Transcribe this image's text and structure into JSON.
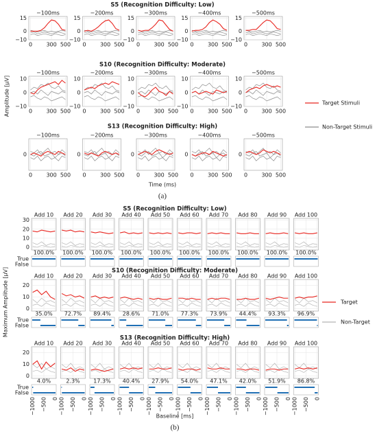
{
  "chart_data": [
    {
      "type": "line",
      "caption": "(a)",
      "ylabel": "Amplitude [μV]",
      "xlabel": "Time (ms)",
      "legend": [
        {
          "name": "Target Stimuli",
          "color": "#e8251f"
        },
        {
          "name": "Non-Target Stimuli",
          "color": "#8c8c8c"
        }
      ],
      "x": [
        0,
        50,
        100,
        150,
        200,
        250,
        300,
        350,
        400,
        450,
        500
      ],
      "xlim": [
        -25,
        525
      ],
      "xticks": [
        0,
        300,
        500
      ],
      "rows": [
        {
          "title": "S5 (Recognition Difficulty: Low)",
          "ylim": [
            -10,
            17
          ],
          "yticks": [
            {
              "value": -10,
              "label": "−10"
            },
            0,
            15
          ],
          "nontarget": [
            [
              -2,
              -1,
              -3,
              -2,
              -1,
              -2,
              -3,
              -2,
              -1,
              -2,
              -3
            ],
            [
              1,
              0,
              -1,
              0,
              1,
              -1,
              0,
              -1,
              0,
              1,
              0
            ],
            [
              -4,
              -3,
              -5,
              -4,
              -3,
              -4,
              -5,
              -3,
              -4,
              -5,
              -4
            ]
          ],
          "panels": [
            {
              "title": "−100ms",
              "target": [
                0,
                0,
                0,
                1,
                4,
                9,
                13,
                12,
                8,
                2,
                1
              ]
            },
            {
              "title": "−200ms",
              "target": [
                0,
                1,
                0,
                2,
                5,
                9,
                12,
                13,
                9,
                3,
                1
              ]
            },
            {
              "title": "−300ms",
              "target": [
                1,
                0,
                1,
                1,
                4,
                8,
                13,
                12,
                7,
                2,
                0
              ]
            },
            {
              "title": "−400ms",
              "target": [
                0,
                1,
                1,
                2,
                5,
                10,
                13,
                11,
                8,
                3,
                1
              ]
            },
            {
              "title": "−500ms",
              "target": [
                1,
                1,
                2,
                2,
                6,
                10,
                13,
                12,
                8,
                3,
                2
              ]
            }
          ]
        },
        {
          "title": "S10 (Recognition Difficulty: Moderate)",
          "ylim": [
            -10,
            12
          ],
          "yticks": [
            {
              "value": -10,
              "label": "−10"
            },
            0,
            10
          ],
          "nontarget": [
            [
              2,
              4,
              3,
              6,
              5,
              7,
              4,
              3,
              5,
              2,
              1
            ],
            [
              -3,
              -2,
              -4,
              -5,
              -3,
              -4,
              -6,
              -5,
              -4,
              -3,
              -5
            ],
            [
              0,
              1,
              -1,
              2,
              0,
              -2,
              1,
              0,
              -1,
              1,
              0
            ]
          ],
          "panels": [
            {
              "title": "−100ms",
              "target": [
                0,
                -1,
                2,
                4,
                5,
                6,
                7,
                8,
                6,
                9,
                7
              ]
            },
            {
              "title": "−200ms",
              "target": [
                2,
                3,
                4,
                3,
                5,
                6,
                7,
                6,
                8,
                7,
                6
              ]
            },
            {
              "title": "−300ms",
              "target": [
                0,
                -2,
                -3,
                -1,
                2,
                4,
                1,
                0,
                -2,
                1,
                -1
              ]
            },
            {
              "title": "−400ms",
              "target": [
                0,
                1,
                -1,
                0,
                1,
                0,
                -1,
                2,
                1,
                0,
                1
              ]
            },
            {
              "title": "−500ms",
              "target": [
                0,
                2,
                3,
                4,
                3,
                5,
                6,
                5,
                4,
                5,
                4
              ]
            }
          ]
        },
        {
          "title": "S13 (Recognition Difficulty: High)",
          "ylim": [
            -10,
            10
          ],
          "yticks": [
            0
          ],
          "nontarget": [
            [
              2,
              1,
              3,
              0,
              2,
              4,
              1,
              2,
              0,
              3,
              1
            ],
            [
              -2,
              -3,
              -1,
              -4,
              -2,
              -1,
              -3,
              -2,
              -4,
              -1,
              -2
            ],
            [
              0,
              -1,
              1,
              2,
              -1,
              0,
              1,
              -2,
              0,
              1,
              -1
            ]
          ],
          "panels": [
            {
              "title": "−100ms",
              "target": [
                0,
                1,
                0,
                -1,
                1,
                2,
                1,
                0,
                2,
                1,
                0
              ]
            },
            {
              "title": "−200ms",
              "target": [
                1,
                0,
                1,
                0,
                -1,
                1,
                2,
                1,
                0,
                1,
                0
              ]
            },
            {
              "title": "−300ms",
              "target": [
                0,
                1,
                2,
                1,
                0,
                2,
                3,
                2,
                1,
                0,
                1
              ]
            },
            {
              "title": "−400ms",
              "target": [
                0,
                -1,
                0,
                1,
                1,
                0,
                2,
                1,
                0,
                -1,
                0
              ]
            },
            {
              "title": "−500ms",
              "target": [
                1,
                2,
                1,
                0,
                1,
                3,
                2,
                1,
                2,
                1,
                0
              ]
            }
          ]
        }
      ]
    },
    {
      "type": "line",
      "caption": "(b)",
      "ylabel": "Maximum Amplitude [μV]",
      "xlabel": "Baseline [ms]",
      "legend": [
        {
          "name": "Target",
          "color": "#e8251f"
        },
        {
          "name": "Non-Target",
          "color": "#b5b5b5"
        }
      ],
      "strip_labels": [
        "True",
        "False"
      ],
      "strip_color": "#1f6fb4",
      "x": [
        -1000,
        -800,
        -600,
        -400,
        -200,
        0
      ],
      "xlim": [
        -1050,
        50
      ],
      "xticks": [
        {
          "value": -1000,
          "label": "−1000"
        },
        {
          "value": -500,
          "label": "−500"
        },
        0
      ],
      "rows": [
        {
          "title": "S5 (Recognition Difficulty: Low)",
          "ylim": [
            -3,
            32
          ],
          "yticks": [
            0,
            10,
            20,
            30
          ],
          "nontarget": [
            [
              5,
              3,
              6,
              2,
              4,
              3
            ],
            [
              1,
              0,
              2,
              1,
              0,
              1
            ]
          ],
          "panels": [
            {
              "title": "Add 10",
              "target": [
                18,
                17,
                19,
                18,
                17,
                18
              ],
              "accuracy": 100.0,
              "accuracy_label": "100.0%"
            },
            {
              "title": "Add 20",
              "target": [
                19,
                18,
                19,
                17,
                18,
                17
              ],
              "accuracy": 100.0,
              "accuracy_label": "100.0%"
            },
            {
              "title": "Add 30",
              "target": [
                17,
                16,
                17,
                16,
                15,
                16
              ],
              "accuracy": 100.0,
              "accuracy_label": "100.0%"
            },
            {
              "title": "Add 40",
              "target": [
                16,
                17,
                15,
                16,
                15,
                16
              ],
              "accuracy": 100.0,
              "accuracy_label": "100.0%"
            },
            {
              "title": "Add 50",
              "target": [
                16,
                15,
                16,
                15,
                16,
                15
              ],
              "accuracy": 100.0,
              "accuracy_label": "100.0%"
            },
            {
              "title": "Add 60",
              "target": [
                16,
                15,
                16,
                16,
                15,
                16
              ],
              "accuracy": 100.0,
              "accuracy_label": "100.0%"
            },
            {
              "title": "Add 70",
              "target": [
                15,
                16,
                15,
                16,
                15,
                15
              ],
              "accuracy": 100.0,
              "accuracy_label": "100.0%"
            },
            {
              "title": "Add 80",
              "target": [
                16,
                15,
                15,
                16,
                15,
                15
              ],
              "accuracy": 100.0,
              "accuracy_label": "100.0%"
            },
            {
              "title": "Add 90",
              "target": [
                15,
                16,
                15,
                15,
                16,
                15
              ],
              "accuracy": 100.0,
              "accuracy_label": "100.0%"
            },
            {
              "title": "Add 100",
              "target": [
                16,
                15,
                16,
                15,
                15,
                16
              ],
              "accuracy": 100.0,
              "accuracy_label": "100.0%"
            }
          ]
        },
        {
          "title": "S10 (Recognition Difficulty: Moderate)",
          "ylim": [
            -2,
            25
          ],
          "yticks": [
            0,
            10,
            20
          ],
          "nontarget": [
            [
              8,
              5,
              9,
              6,
              7,
              5
            ],
            [
              3,
              4,
              2,
              5,
              3,
              2
            ]
          ],
          "panels": [
            {
              "title": "Add 10",
              "target": [
                14,
                16,
                12,
                15,
                10,
                8
              ],
              "accuracy": 35.0,
              "accuracy_label": "35.0%"
            },
            {
              "title": "Add 20",
              "target": [
                13,
                11,
                12,
                10,
                11,
                9
              ],
              "accuracy": 72.7,
              "accuracy_label": "72.7%"
            },
            {
              "title": "Add 30",
              "target": [
                10,
                11,
                9,
                10,
                9,
                10
              ],
              "accuracy": 89.4,
              "accuracy_label": "89.4%"
            },
            {
              "title": "Add 40",
              "target": [
                9,
                10,
                9,
                8,
                9,
                8
              ],
              "accuracy": 28.6,
              "accuracy_label": "28.6%"
            },
            {
              "title": "Add 50",
              "target": [
                9,
                8,
                9,
                8,
                8,
                9
              ],
              "accuracy": 71.0,
              "accuracy_label": "71.0%"
            },
            {
              "title": "Add 60",
              "target": [
                9,
                9,
                8,
                9,
                8,
                8
              ],
              "accuracy": 77.3,
              "accuracy_label": "77.3%"
            },
            {
              "title": "Add 70",
              "target": [
                8,
                9,
                8,
                9,
                9,
                8
              ],
              "accuracy": 73.9,
              "accuracy_label": "73.9%"
            },
            {
              "title": "Add 80",
              "target": [
                8,
                8,
                9,
                8,
                8,
                9
              ],
              "accuracy": 44.4,
              "accuracy_label": "44.4%"
            },
            {
              "title": "Add 90",
              "target": [
                9,
                8,
                9,
                10,
                9,
                9
              ],
              "accuracy": 93.3,
              "accuracy_label": "93.3%"
            },
            {
              "title": "Add 100",
              "target": [
                9,
                10,
                9,
                10,
                10,
                11
              ],
              "accuracy": 96.9,
              "accuracy_label": "96.9%"
            }
          ]
        },
        {
          "title": "S13 (Recognition Difficulty: High)",
          "ylim": [
            -2,
            25
          ],
          "yticks": [
            0,
            10,
            20
          ],
          "nontarget": [
            [
              10,
              7,
              11,
              6,
              8,
              6
            ],
            [
              4,
              5,
              3,
              6,
              4,
              3
            ]
          ],
          "panels": [
            {
              "title": "Add 10",
              "target": [
                10,
                13,
                6,
                12,
                8,
                11
              ],
              "accuracy": 4.0,
              "accuracy_label": "4.0%"
            },
            {
              "title": "Add 20",
              "target": [
                6,
                5,
                7,
                4,
                6,
                5
              ],
              "accuracy": 2.3,
              "accuracy_label": "2.3%"
            },
            {
              "title": "Add 30",
              "target": [
                5,
                6,
                5,
                4,
                5,
                6
              ],
              "accuracy": 17.3,
              "accuracy_label": "17.3%"
            },
            {
              "title": "Add 40",
              "target": [
                6,
                7,
                6,
                7,
                6,
                7
              ],
              "accuracy": 40.4,
              "accuracy_label": "40.4%"
            },
            {
              "title": "Add 50",
              "target": [
                6,
                6,
                7,
                6,
                6,
                7
              ],
              "accuracy": 27.9,
              "accuracy_label": "27.9%"
            },
            {
              "title": "Add 60",
              "target": [
                6,
                5,
                6,
                6,
                5,
                6
              ],
              "accuracy": 54.0,
              "accuracy_label": "54.0%"
            },
            {
              "title": "Add 70",
              "target": [
                7,
                6,
                6,
                7,
                6,
                6
              ],
              "accuracy": 47.1,
              "accuracy_label": "47.1%"
            },
            {
              "title": "Add 80",
              "target": [
                6,
                6,
                5,
                6,
                6,
                5
              ],
              "accuracy": 42.0,
              "accuracy_label": "42.0%"
            },
            {
              "title": "Add 90",
              "target": [
                5,
                6,
                6,
                5,
                6,
                6
              ],
              "accuracy": 51.9,
              "accuracy_label": "51.9%"
            },
            {
              "title": "Add 100",
              "target": [
                6,
                7,
                6,
                7,
                6,
                7
              ],
              "accuracy": 86.8,
              "accuracy_label": "86.8%"
            }
          ]
        }
      ]
    }
  ]
}
